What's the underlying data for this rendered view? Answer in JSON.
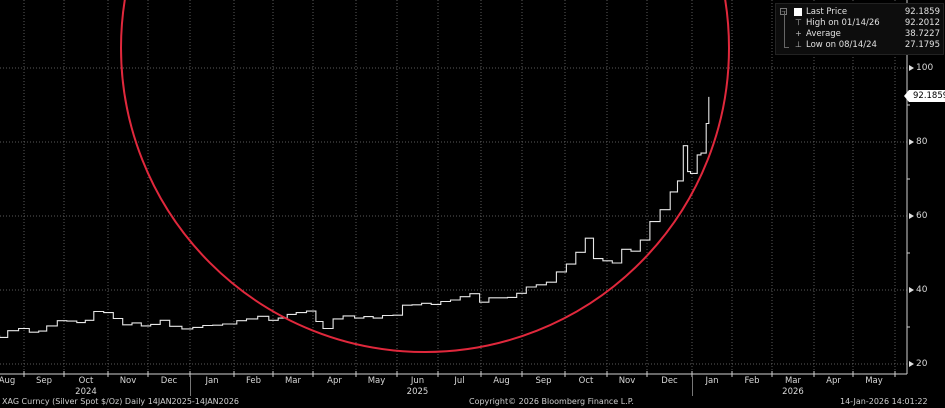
{
  "legend": {
    "rows": [
      {
        "icon": "last-price-square-icon",
        "label": "Last Price",
        "value": "92.1859"
      },
      {
        "icon": "high-marker-icon",
        "label": "High on 01/14/26",
        "value": "92.2012"
      },
      {
        "icon": "average-marker-icon",
        "label": "Average",
        "value": "38.7227"
      },
      {
        "icon": "low-marker-icon",
        "label": "Low on 08/14/24",
        "value": "27.1795"
      }
    ]
  },
  "last_price_tag": "92.1859",
  "footer": {
    "security": "XAG Curncy (Silver Spot  $/Oz) Daily 14JAN2025-14JAN2026",
    "copyright": "Copyright© 2026 Bloomberg Finance L.P.",
    "timestamp": "14-Jan-2026 14:01:22"
  },
  "colors": {
    "background": "#000000",
    "series": "#e8e8e8",
    "grid": "#5a5a5a",
    "annotation_circle": "#e0283c",
    "axis": "#cfcfcf"
  },
  "chart_data": {
    "type": "line",
    "title": "XAG Curncy (Silver Spot $/Oz) Daily",
    "xlabel": "",
    "ylabel": "$/Oz",
    "ylim": [
      20,
      105
    ],
    "y_ticks": [
      20,
      40,
      60,
      80,
      100
    ],
    "x_tick_labels": [
      "Aug",
      "Sep",
      "Oct",
      "Nov",
      "Dec",
      "Jan",
      "Feb",
      "Mar",
      "Apr",
      "May",
      "Jun",
      "Jul",
      "Aug",
      "Sep",
      "Oct",
      "Nov",
      "Dec",
      "Jan",
      "Feb",
      "Mar",
      "Apr",
      "May"
    ],
    "year_labels": [
      {
        "label": "2024",
        "month_index": 2
      },
      {
        "label": "2025",
        "month_index": 10
      },
      {
        "label": "2026",
        "month_index": 19
      }
    ],
    "grid": true,
    "legend_position": "top-right",
    "last_price": 92.1859,
    "high": {
      "date": "01/14/26",
      "value": 92.2012
    },
    "average": 38.7227,
    "low": {
      "date": "08/14/24",
      "value": 27.1795
    },
    "annotation": "red circle highlighting the 2025 rally",
    "series": [
      {
        "name": "Silver Spot",
        "points": [
          [
            "2024-08-01",
            28.5
          ],
          [
            "2024-08-08",
            27.6
          ],
          [
            "2024-08-14",
            27.2
          ],
          [
            "2024-08-20",
            29.0
          ],
          [
            "2024-08-28",
            29.6
          ],
          [
            "2024-09-05",
            28.6
          ],
          [
            "2024-09-12",
            28.9
          ],
          [
            "2024-09-18",
            30.3
          ],
          [
            "2024-09-26",
            31.7
          ],
          [
            "2024-10-03",
            31.6
          ],
          [
            "2024-10-10",
            31.2
          ],
          [
            "2024-10-16",
            31.8
          ],
          [
            "2024-10-22",
            34.2
          ],
          [
            "2024-10-29",
            33.9
          ],
          [
            "2024-11-05",
            32.3
          ],
          [
            "2024-11-12",
            30.6
          ],
          [
            "2024-11-19",
            31.1
          ],
          [
            "2024-11-26",
            30.3
          ],
          [
            "2024-12-03",
            30.7
          ],
          [
            "2024-12-10",
            31.8
          ],
          [
            "2024-12-17",
            30.2
          ],
          [
            "2024-12-26",
            29.5
          ],
          [
            "2025-01-03",
            29.9
          ],
          [
            "2025-01-10",
            30.4
          ],
          [
            "2025-01-17",
            30.5
          ],
          [
            "2025-01-24",
            30.8
          ],
          [
            "2025-02-03",
            31.7
          ],
          [
            "2025-02-10",
            32.2
          ],
          [
            "2025-02-18",
            32.9
          ],
          [
            "2025-02-26",
            31.8
          ],
          [
            "2025-03-05",
            32.4
          ],
          [
            "2025-03-12",
            33.4
          ],
          [
            "2025-03-19",
            33.9
          ],
          [
            "2025-03-27",
            34.3
          ],
          [
            "2025-04-03",
            31.5
          ],
          [
            "2025-04-08",
            29.6
          ],
          [
            "2025-04-15",
            32.2
          ],
          [
            "2025-04-22",
            33.0
          ],
          [
            "2025-04-30",
            32.4
          ],
          [
            "2025-05-07",
            32.8
          ],
          [
            "2025-05-14",
            32.4
          ],
          [
            "2025-05-21",
            33.1
          ],
          [
            "2025-05-29",
            33.2
          ],
          [
            "2025-06-05",
            35.9
          ],
          [
            "2025-06-12",
            36.0
          ],
          [
            "2025-06-19",
            36.4
          ],
          [
            "2025-06-26",
            36.1
          ],
          [
            "2025-07-03",
            36.9
          ],
          [
            "2025-07-10",
            37.3
          ],
          [
            "2025-07-17",
            38.2
          ],
          [
            "2025-07-24",
            39.0
          ],
          [
            "2025-07-31",
            36.7
          ],
          [
            "2025-08-07",
            37.9
          ],
          [
            "2025-08-14",
            37.9
          ],
          [
            "2025-08-21",
            38.0
          ],
          [
            "2025-08-28",
            39.1
          ],
          [
            "2025-09-04",
            40.8
          ],
          [
            "2025-09-11",
            41.4
          ],
          [
            "2025-09-18",
            42.1
          ],
          [
            "2025-09-25",
            44.9
          ],
          [
            "2025-10-02",
            47.0
          ],
          [
            "2025-10-09",
            50.2
          ],
          [
            "2025-10-16",
            54.0
          ],
          [
            "2025-10-22",
            48.5
          ],
          [
            "2025-10-29",
            47.9
          ],
          [
            "2025-11-05",
            47.3
          ],
          [
            "2025-11-12",
            51.0
          ],
          [
            "2025-11-19",
            50.5
          ],
          [
            "2025-11-26",
            53.5
          ],
          [
            "2025-12-03",
            58.5
          ],
          [
            "2025-12-10",
            61.7
          ],
          [
            "2025-12-17",
            66.5
          ],
          [
            "2025-12-22",
            69.5
          ],
          [
            "2025-12-26",
            79.0
          ],
          [
            "2025-12-29",
            72.0
          ],
          [
            "2025-12-31",
            71.5
          ],
          [
            "2026-01-05",
            76.5
          ],
          [
            "2026-01-08",
            77.0
          ],
          [
            "2026-01-12",
            85.0
          ],
          [
            "2026-01-14",
            92.19
          ]
        ]
      }
    ]
  }
}
